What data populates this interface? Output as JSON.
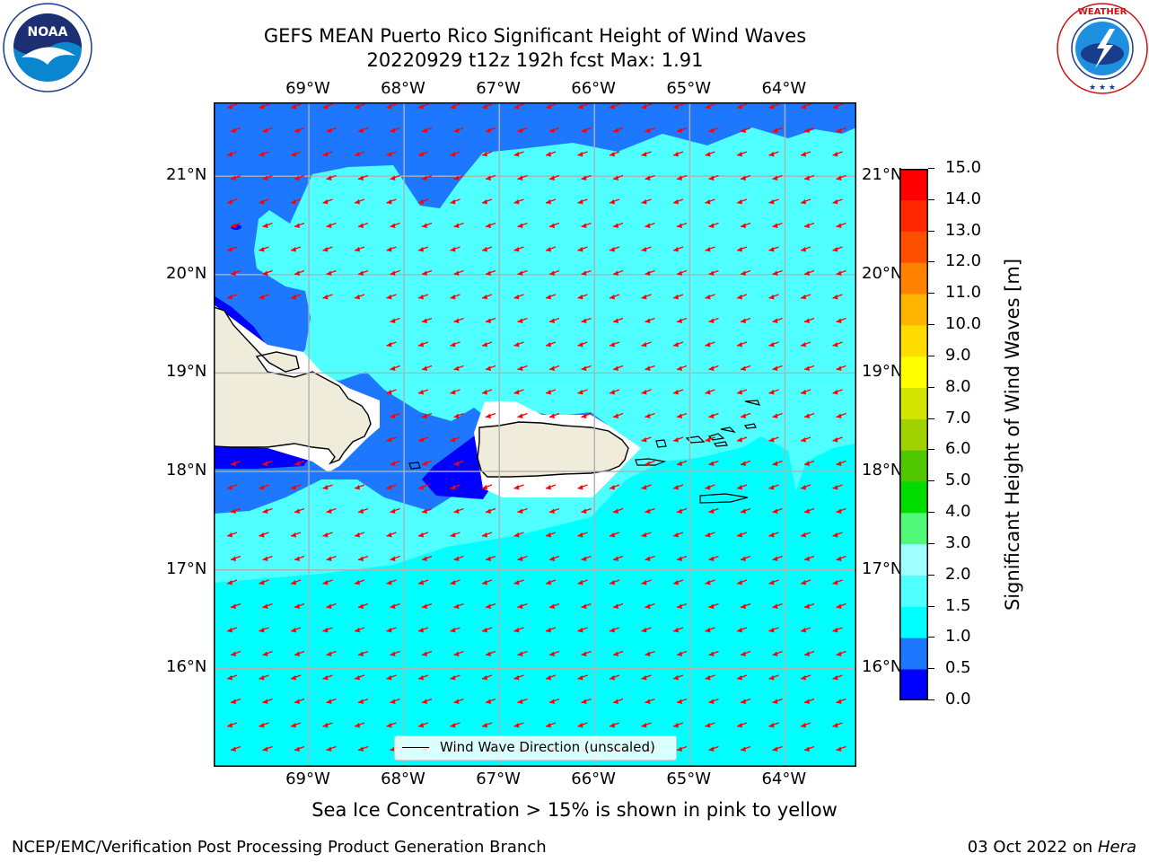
{
  "title_line1": "GEFS MEAN Puerto Rico Significant Height of Wind Waves",
  "title_line2": "20220929 t12z 192h fcst   Max: 1.91",
  "logos": {
    "left": "NOAA",
    "right": "NATIONAL WEATHER SERVICE"
  },
  "lon_labels": [
    "69°W",
    "68°W",
    "67°W",
    "66°W",
    "65°W",
    "64°W"
  ],
  "lat_labels": [
    "21°N",
    "20°N",
    "19°N",
    "18°N",
    "17°N",
    "16°N"
  ],
  "map": {
    "lon_range": [
      -70.0,
      -63.25
    ],
    "lat_range": [
      15.0,
      21.75
    ],
    "land_color": "#efecdc",
    "arrow_color": "#ff0000",
    "arrow_direction": "toward west-southwest",
    "islands": [
      "Hispaniola",
      "Puerto Rico",
      "Mona Island",
      "Vieques",
      "Culebra",
      "Virgin Islands",
      "St. Croix"
    ]
  },
  "colorbar": {
    "ticks": [
      "0.0",
      "0.5",
      "1.0",
      "1.5",
      "2.0",
      "3.0",
      "4.0",
      "5.0",
      "6.0",
      "7.0",
      "8.0",
      "9.0",
      "10.0",
      "11.0",
      "12.0",
      "13.0",
      "14.0",
      "15.0"
    ],
    "colors": [
      "#0000ff",
      "#1e78ff",
      "#00ffff",
      "#50ffff",
      "#a0ffff",
      "#50fa78",
      "#00dc00",
      "#50c800",
      "#a0d200",
      "#d2e600",
      "#ffff00",
      "#ffdc00",
      "#ffb400",
      "#ff8200",
      "#ff5000",
      "#ff2800",
      "#ff0000"
    ],
    "label": "Significant Height of Wind Waves [m]"
  },
  "legend": {
    "label": "Wind Wave Direction (unscaled)"
  },
  "note": "Sea Ice Concentration > 15% is shown in pink to yellow",
  "footer": {
    "left": "NCEP/EMC/Verification Post Processing Product Generation Branch",
    "right_prefix": "03 Oct 2022 on ",
    "right_host": "Hera"
  }
}
